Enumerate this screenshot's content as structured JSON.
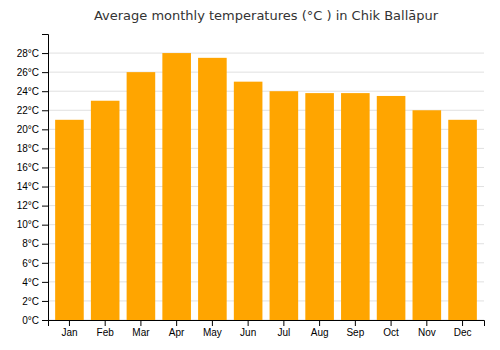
{
  "chart_data": {
    "type": "bar",
    "title": "Average monthly temperatures (°C ) in Chik Ballāpur",
    "categories": [
      "Jan",
      "Feb",
      "Mar",
      "Apr",
      "May",
      "Jun",
      "Jul",
      "Aug",
      "Sep",
      "Oct",
      "Nov",
      "Dec"
    ],
    "values": [
      21,
      23,
      26,
      28,
      27.5,
      25,
      24,
      23.8,
      23.8,
      23.5,
      22,
      21
    ],
    "color": "#FFA500",
    "ylim": [
      0,
      30
    ],
    "yticks": [
      {
        "value": 0,
        "label": "0°C"
      },
      {
        "value": 2,
        "label": "2°C"
      },
      {
        "value": 4,
        "label": "4°C"
      },
      {
        "value": 6,
        "label": "6°C"
      },
      {
        "value": 8,
        "label": "8°C"
      },
      {
        "value": 10,
        "label": "10°C"
      },
      {
        "value": 12,
        "label": "12°C"
      },
      {
        "value": 14,
        "label": "14°C"
      },
      {
        "value": 16,
        "label": "16°C"
      },
      {
        "value": 18,
        "label": "18°C"
      },
      {
        "value": 20,
        "label": "20°C"
      },
      {
        "value": 22,
        "label": "22°C"
      },
      {
        "value": 24,
        "label": "24°C"
      },
      {
        "value": 26,
        "label": "26°C"
      },
      {
        "value": 28,
        "label": "28°C"
      }
    ],
    "grid": true
  }
}
